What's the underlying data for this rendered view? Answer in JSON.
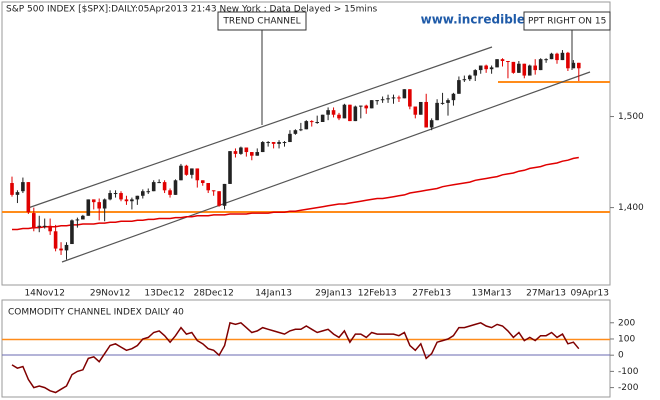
{
  "chart_data": [
    {
      "type": "candlestick",
      "title": "S&P 500 INDEX [$SPX]:DAILY:05Apr2013 21:43 New York : Data Delayed > 15mins",
      "source": "www.incrediblecharts.com",
      "annotations": [
        "TREND CHANNEL",
        "PPT RIGHT ON 15"
      ],
      "up_color": "#222222",
      "down_color": "#e00000",
      "ylim": [
        1315,
        1617
      ],
      "yticks": [
        {
          "value": 1400,
          "label": "1,400"
        },
        {
          "value": 1500,
          "label": "1,500"
        }
      ],
      "categories": [
        null,
        null,
        null,
        null,
        null,
        null,
        "14Nov12",
        null,
        null,
        null,
        null,
        null,
        null,
        null,
        null,
        null,
        null,
        null,
        "29Nov12",
        null,
        null,
        null,
        null,
        null,
        null,
        null,
        null,
        null,
        "13Dec12",
        null,
        null,
        null,
        null,
        null,
        null,
        null,
        null,
        "28Dec12",
        null,
        null,
        null,
        null,
        null,
        null,
        null,
        null,
        null,
        null,
        "14Jan13",
        null,
        null,
        null,
        null,
        null,
        null,
        null,
        null,
        null,
        null,
        "29Jan13",
        null,
        null,
        null,
        null,
        null,
        null,
        null,
        "12Feb13",
        null,
        null,
        null,
        null,
        null,
        null,
        null,
        null,
        null,
        "27Feb13",
        null,
        null,
        null,
        null,
        null,
        null,
        null,
        null,
        null,
        null,
        "13Mar13",
        null,
        null,
        null,
        null,
        null,
        null,
        null,
        null,
        null,
        "27Mar13",
        null,
        null,
        null,
        null,
        null,
        null,
        null,
        "09Apr13"
      ],
      "ohlc": [
        [
          1427,
          1434,
          1412,
          1414
        ],
        [
          1414,
          1419,
          1405,
          1417
        ],
        [
          1418,
          1433,
          1416,
          1428
        ],
        [
          1428,
          1428,
          1393,
          1395
        ],
        [
          1394,
          1400,
          1374,
          1377
        ],
        [
          1379,
          1391,
          1373,
          1380
        ],
        [
          1380,
          1388,
          1377,
          1380
        ],
        [
          1380,
          1388,
          1370,
          1374
        ],
        [
          1374,
          1381,
          1352,
          1355
        ],
        [
          1355,
          1362,
          1348,
          1353
        ],
        [
          1353,
          1362,
          1343,
          1359
        ],
        [
          1360,
          1387,
          1360,
          1386
        ],
        [
          1386,
          1389,
          1378,
          1387
        ],
        [
          1387,
          1392,
          1387,
          1391
        ],
        [
          1391,
          1409,
          1391,
          1409
        ],
        [
          1409,
          1409,
          1398,
          1406
        ],
        [
          1406,
          1410,
          1386,
          1399
        ],
        [
          1399,
          1410,
          1385,
          1409
        ],
        [
          1409,
          1419,
          1408,
          1416
        ],
        [
          1416,
          1419,
          1411,
          1416
        ],
        [
          1416,
          1418,
          1407,
          1409
        ],
        [
          1409,
          1413,
          1403,
          1407
        ],
        [
          1407,
          1411,
          1398,
          1409
        ],
        [
          1409,
          1413,
          1403,
          1413
        ],
        [
          1413,
          1420,
          1410,
          1418
        ],
        [
          1418,
          1421,
          1415,
          1418
        ],
        [
          1418,
          1430,
          1418,
          1428
        ],
        [
          1428,
          1431,
          1427,
          1428
        ],
        [
          1428,
          1430,
          1416,
          1419
        ],
        [
          1419,
          1421,
          1411,
          1414
        ],
        [
          1414,
          1431,
          1414,
          1430
        ],
        [
          1430,
          1448,
          1430,
          1446
        ],
        [
          1446,
          1447,
          1435,
          1436
        ],
        [
          1436,
          1443,
          1432,
          1443
        ],
        [
          1443,
          1443,
          1422,
          1430
        ],
        [
          1430,
          1430,
          1424,
          1427
        ],
        [
          1427,
          1427,
          1416,
          1419
        ],
        [
          1419,
          1419,
          1413,
          1418
        ],
        [
          1418,
          1418,
          1401,
          1402
        ],
        [
          1402,
          1426,
          1398,
          1426
        ],
        [
          1426,
          1462,
          1426,
          1462
        ],
        [
          1462,
          1465,
          1455,
          1459
        ],
        [
          1459,
          1467,
          1458,
          1466
        ],
        [
          1466,
          1466,
          1456,
          1461
        ],
        [
          1461,
          1461,
          1452,
          1457
        ],
        [
          1457,
          1465,
          1457,
          1461
        ],
        [
          1461,
          1473,
          1461,
          1472
        ],
        [
          1472,
          1473,
          1467,
          1472
        ],
        [
          1472,
          1472,
          1465,
          1470
        ],
        [
          1470,
          1474,
          1465,
          1472
        ],
        [
          1472,
          1473,
          1467,
          1472
        ],
        [
          1472,
          1485,
          1472,
          1481
        ],
        [
          1481,
          1486,
          1480,
          1485
        ],
        [
          1485,
          1493,
          1484,
          1486
        ],
        [
          1486,
          1496,
          1486,
          1495
        ],
        [
          1495,
          1496,
          1489,
          1494
        ],
        [
          1494,
          1501,
          1492,
          1494
        ],
        [
          1494,
          1502,
          1494,
          1502
        ],
        [
          1502,
          1510,
          1496,
          1507
        ],
        [
          1507,
          1510,
          1499,
          1502
        ],
        [
          1502,
          1504,
          1496,
          1498
        ],
        [
          1498,
          1514,
          1498,
          1513
        ],
        [
          1513,
          1513,
          1495,
          1495
        ],
        [
          1495,
          1512,
          1495,
          1511
        ],
        [
          1511,
          1512,
          1498,
          1512
        ],
        [
          1512,
          1513,
          1503,
          1509
        ],
        [
          1509,
          1518,
          1509,
          1518
        ],
        [
          1518,
          1518,
          1513,
          1518
        ],
        [
          1518,
          1522,
          1515,
          1519
        ],
        [
          1519,
          1524,
          1515,
          1520
        ],
        [
          1520,
          1524,
          1514,
          1521
        ],
        [
          1521,
          1523,
          1516,
          1520
        ],
        [
          1520,
          1530,
          1520,
          1530
        ],
        [
          1530,
          1530,
          1508,
          1511
        ],
        [
          1511,
          1511,
          1498,
          1502
        ],
        [
          1502,
          1516,
          1502,
          1516
        ],
        [
          1516,
          1525,
          1488,
          1488
        ],
        [
          1488,
          1498,
          1485,
          1496
        ],
        [
          1496,
          1519,
          1496,
          1515
        ],
        [
          1515,
          1526,
          1513,
          1515
        ],
        [
          1515,
          1520,
          1501,
          1518
        ],
        [
          1518,
          1526,
          1512,
          1525
        ],
        [
          1525,
          1544,
          1525,
          1540
        ],
        [
          1540,
          1545,
          1538,
          1541
        ],
        [
          1541,
          1546,
          1539,
          1545
        ],
        [
          1545,
          1552,
          1539,
          1551
        ],
        [
          1551,
          1556,
          1547,
          1556
        ],
        [
          1556,
          1557,
          1548,
          1552
        ],
        [
          1552,
          1556,
          1547,
          1554
        ],
        [
          1554,
          1563,
          1554,
          1563
        ],
        [
          1563,
          1564,
          1555,
          1561
        ],
        [
          1561,
          1561,
          1542,
          1560
        ],
        [
          1560,
          1560,
          1547,
          1548
        ],
        [
          1548,
          1561,
          1548,
          1558
        ],
        [
          1558,
          1558,
          1542,
          1545
        ],
        [
          1545,
          1557,
          1545,
          1556
        ],
        [
          1556,
          1563,
          1546,
          1551
        ],
        [
          1551,
          1564,
          1551,
          1563
        ],
        [
          1563,
          1564,
          1559,
          1563
        ],
        [
          1563,
          1570,
          1563,
          1569
        ],
        [
          1569,
          1570,
          1558,
          1562
        ],
        [
          1562,
          1573,
          1562,
          1570
        ],
        [
          1570,
          1571,
          1550,
          1553
        ],
        [
          1553,
          1562,
          1553,
          1559
        ],
        [
          1559,
          1559,
          1539,
          1553
        ],
        null,
        null
      ],
      "moving_average": {
        "color": "#e00000",
        "values": [
          1376,
          1376,
          1377,
          1377,
          1378,
          1378,
          1379,
          1379,
          1379,
          1380,
          1380,
          1381,
          1381,
          1382,
          1382,
          1382,
          1383,
          1383,
          1384,
          1384,
          1385,
          1385,
          1385,
          1386,
          1386,
          1387,
          1387,
          1388,
          1388,
          1388,
          1389,
          1389,
          1390,
          1390,
          1391,
          1391,
          1391,
          1392,
          1392,
          1392,
          1393,
          1393,
          1393,
          1393,
          1394,
          1394,
          1394,
          1394,
          1395,
          1395,
          1395,
          1396,
          1396,
          1397,
          1398,
          1399,
          1400,
          1401,
          1402,
          1403,
          1404,
          1404,
          1405,
          1406,
          1407,
          1408,
          1409,
          1410,
          1410,
          1411,
          1412,
          1413,
          1414,
          1416,
          1417,
          1418,
          1419,
          1420,
          1421,
          1423,
          1424,
          1425,
          1426,
          1427,
          1428,
          1430,
          1431,
          1432,
          1433,
          1434,
          1436,
          1437,
          1438,
          1440,
          1441,
          1443,
          1444,
          1445,
          1447,
          1448,
          1449,
          1451,
          1452,
          1454,
          1455,
          null,
          null
        ]
      }
    },
    {
      "type": "line",
      "title": "COMMODITY CHANNEL INDEX DAILY 40",
      "color": "#800000",
      "ylim": [
        -258,
        322
      ],
      "yticks": [
        200,
        100,
        0,
        -100,
        -200
      ],
      "values": [
        -60,
        -80,
        -70,
        -150,
        -200,
        -190,
        -200,
        -220,
        -230,
        -210,
        -190,
        -120,
        -100,
        -90,
        -20,
        -10,
        -40,
        10,
        60,
        70,
        50,
        30,
        40,
        60,
        100,
        110,
        140,
        150,
        120,
        80,
        120,
        170,
        130,
        140,
        90,
        70,
        40,
        30,
        0,
        60,
        200,
        190,
        200,
        170,
        140,
        150,
        170,
        160,
        150,
        140,
        130,
        150,
        160,
        160,
        180,
        160,
        140,
        150,
        160,
        130,
        110,
        150,
        80,
        130,
        130,
        110,
        140,
        130,
        130,
        130,
        130,
        120,
        140,
        60,
        30,
        70,
        -20,
        10,
        80,
        90,
        100,
        120,
        170,
        170,
        180,
        190,
        200,
        180,
        170,
        190,
        180,
        150,
        110,
        140,
        90,
        110,
        90,
        120,
        120,
        140,
        110,
        130,
        70,
        80,
        40,
        null,
        null
      ]
    }
  ]
}
